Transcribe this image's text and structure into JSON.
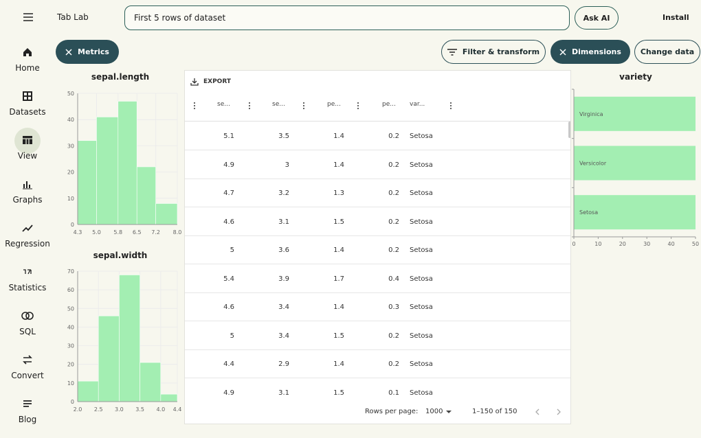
{
  "header": {
    "app_name": "Tab Lab",
    "search": "First 5 rows of dataset",
    "ask_button": "Ask AI",
    "install_button": "Install"
  },
  "nav": [
    "Home",
    "Datasets",
    "View",
    "Graphs",
    "Regression",
    "Statistics",
    "SQL",
    "Convert",
    "Blog"
  ],
  "toolbar": [
    "Metrics",
    "Filter & transform",
    "Dimensions",
    "Change data"
  ],
  "table": {
    "export": "EXPORT",
    "columns": [
      "se...",
      "se...",
      "pe...",
      "pe...",
      "var..."
    ],
    "rows": [
      [
        5.1,
        3.5,
        1.4,
        0.2,
        "Setosa"
      ],
      [
        4.9,
        3,
        1.4,
        0.2,
        "Setosa"
      ],
      [
        4.7,
        3.2,
        1.3,
        0.2,
        "Setosa"
      ],
      [
        4.6,
        3.1,
        1.5,
        0.2,
        "Setosa"
      ],
      [
        5,
        3.6,
        1.4,
        0.2,
        "Setosa"
      ],
      [
        5.4,
        3.9,
        1.7,
        0.4,
        "Setosa"
      ],
      [
        4.6,
        3.4,
        1.4,
        0.3,
        "Setosa"
      ],
      [
        5,
        3.4,
        1.5,
        0.2,
        "Setosa"
      ],
      [
        4.4,
        2.9,
        1.4,
        0.2,
        "Setosa"
      ],
      [
        4.9,
        3.1,
        1.5,
        0.1,
        "Setosa"
      ]
    ],
    "footer": {
      "rows_per_page_label": "Rows per page:",
      "rows_per_page": 1000,
      "range": "1–150 of 150"
    }
  },
  "chart_data": [
    {
      "type": "histogram",
      "title": "sepal.length",
      "bins": [
        4.3,
        5,
        5.8,
        6.5,
        7.2,
        8
      ],
      "values": [
        32,
        41,
        47,
        22,
        8
      ],
      "color": "#a3eeb2",
      "xlim": [
        4.3,
        8
      ],
      "xticks": [
        4.3,
        {
          "value": 5,
          "label": "5.0"
        },
        5.8,
        6.5,
        7.2,
        {
          "value": 8,
          "label": "8.0"
        }
      ],
      "ylim": [
        0,
        50
      ],
      "yticks": [
        0,
        10,
        20,
        30,
        40,
        50
      ],
      "grid": true
    },
    {
      "type": "histogram",
      "title": "sepal.width",
      "bins": [
        2,
        2.5,
        3,
        3.5,
        4,
        4.4
      ],
      "values": [
        11,
        46,
        68,
        21,
        4
      ],
      "color": "#a3eeb2",
      "xlim": [
        2,
        4.4
      ],
      "xticks": [
        {
          "value": 2,
          "label": "2.0"
        },
        2.5,
        {
          "value": 3,
          "label": "3.0"
        },
        3.5,
        {
          "value": 4,
          "label": "4.0"
        },
        4.4
      ],
      "ylim": [
        0,
        70
      ],
      "yticks": [
        0,
        10,
        20,
        30,
        40,
        50,
        60,
        70
      ],
      "grid": true
    },
    {
      "type": "bar",
      "orientation": "horizontal",
      "title": "variety",
      "categories": [
        "Virginica",
        "Versicolor",
        "Setosa"
      ],
      "values": [
        50,
        50,
        50
      ],
      "color": "#a3eeb2",
      "xlim": [
        0,
        50
      ],
      "xticks": [
        0,
        10,
        20,
        30,
        40,
        50
      ],
      "grid": false
    }
  ]
}
